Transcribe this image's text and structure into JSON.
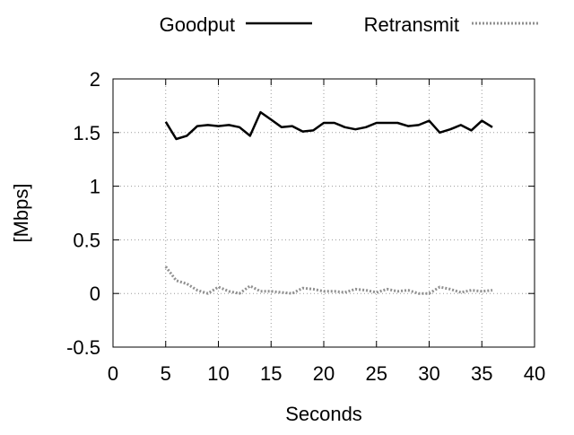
{
  "chart_data": {
    "type": "line",
    "title": "",
    "xlabel": "Seconds",
    "ylabel": "[Mbps]",
    "xlim": [
      0,
      40
    ],
    "ylim": [
      -0.5,
      2
    ],
    "x_ticks": [
      0,
      5,
      10,
      15,
      20,
      25,
      30,
      35,
      40
    ],
    "y_ticks": [
      -0.5,
      0,
      0.5,
      1,
      1.5,
      2
    ],
    "x_tick_labels": [
      "0",
      "5",
      "10",
      "15",
      "20",
      "25",
      "30",
      "35",
      "40"
    ],
    "y_tick_labels": [
      "-0.5",
      "0",
      "0.5",
      "1",
      "1.5",
      "2"
    ],
    "grid": true,
    "legend_position": "top",
    "x": [
      5,
      6,
      7,
      8,
      9,
      10,
      11,
      12,
      13,
      14,
      15,
      16,
      17,
      18,
      19,
      20,
      21,
      22,
      23,
      24,
      25,
      26,
      27,
      28,
      29,
      30,
      31,
      32,
      33,
      34,
      35,
      36
    ],
    "series": [
      {
        "name": "Goodput",
        "color": "#000000",
        "style": "solid",
        "values": [
          1.6,
          1.44,
          1.47,
          1.56,
          1.57,
          1.56,
          1.57,
          1.55,
          1.47,
          1.69,
          1.62,
          1.55,
          1.56,
          1.51,
          1.52,
          1.59,
          1.59,
          1.55,
          1.53,
          1.55,
          1.59,
          1.59,
          1.59,
          1.56,
          1.57,
          1.61,
          1.5,
          1.53,
          1.57,
          1.52,
          1.61,
          1.55
        ]
      },
      {
        "name": "Retransmit",
        "color": "#909090",
        "style": "dotted",
        "values": [
          0.25,
          0.12,
          0.09,
          0.03,
          0.0,
          0.06,
          0.02,
          0.0,
          0.07,
          0.02,
          0.02,
          0.01,
          0.0,
          0.05,
          0.04,
          0.02,
          0.02,
          0.01,
          0.04,
          0.03,
          0.01,
          0.04,
          0.02,
          0.03,
          0.0,
          0.0,
          0.06,
          0.04,
          0.01,
          0.03,
          0.02,
          0.03
        ]
      }
    ]
  }
}
